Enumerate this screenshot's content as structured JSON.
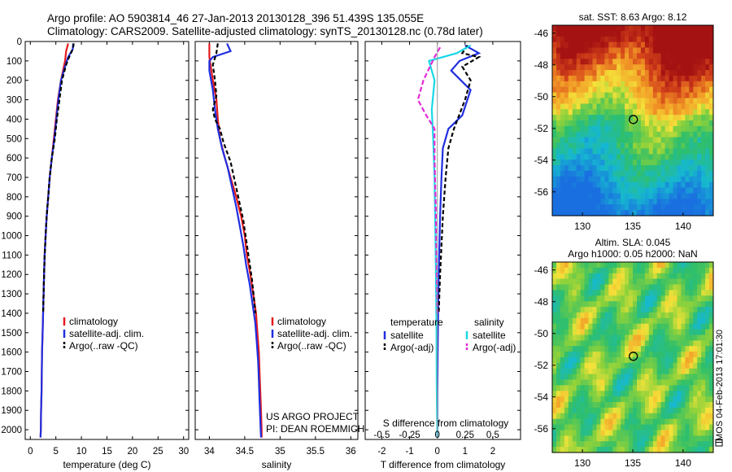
{
  "header": {
    "line1": "Argo profile: AO 5903814_46 27-Jan-2013 20130128_396 51.439S 135.055E",
    "line2": "Climatology: CARS2009. Satellite-adjusted climatology: synTS_20130128.nc (0.78d later)"
  },
  "side_text": "IMOS 04-Feb-2013 17:01:30",
  "credit": {
    "line1": "US ARGO PROJECT",
    "line2": "PI: DEAN ROEMMICH"
  },
  "colors": {
    "climatology": "#e41a1c",
    "satellite": "#1f2ee0",
    "argo": "#000000",
    "satellite_diff_s": "#19d8e8",
    "argo_diff_s": "#e22ad6"
  },
  "chart_data": [
    {
      "type": "line",
      "id": "temperature",
      "xlabel": "temperature (deg C)",
      "ylabel": "",
      "xlim": [
        -1,
        31
      ],
      "ylim": [
        2050,
        0
      ],
      "xticks": [
        0,
        5,
        10,
        15,
        20,
        25,
        30
      ],
      "yticks": [
        0,
        100,
        200,
        300,
        400,
        500,
        600,
        700,
        800,
        900,
        1000,
        1100,
        1200,
        1300,
        1400,
        1500,
        1600,
        1700,
        1800,
        1900,
        2000
      ],
      "legend": [
        "climatology",
        "satellite-adj. clim.",
        "Argo(..raw -QC)"
      ],
      "series": [
        {
          "name": "climatology",
          "color": "#e41a1c",
          "dash": "",
          "points": [
            [
              7.4,
              10
            ],
            [
              7.0,
              50
            ],
            [
              6.8,
              100
            ],
            [
              6.0,
              200
            ],
            [
              5.4,
              300
            ],
            [
              5.0,
              400
            ],
            [
              4.6,
              500
            ],
            [
              4.2,
              600
            ],
            [
              3.8,
              700
            ],
            [
              3.5,
              800
            ],
            [
              3.2,
              900
            ],
            [
              3.0,
              1000
            ],
            [
              2.8,
              1100
            ],
            [
              2.7,
              1200
            ],
            [
              2.6,
              1300
            ],
            [
              2.5,
              1400
            ],
            [
              2.4,
              1500
            ],
            [
              2.3,
              1600
            ],
            [
              2.25,
              1700
            ],
            [
              2.2,
              1800
            ],
            [
              2.1,
              1900
            ],
            [
              2.05,
              2000
            ],
            [
              2.0,
              2040
            ]
          ]
        },
        {
          "name": "satellite-adj. clim.",
          "color": "#1f2ee0",
          "dash": "",
          "points": [
            [
              8.4,
              10
            ],
            [
              8.3,
              40
            ],
            [
              7.4,
              80
            ],
            [
              6.9,
              120
            ],
            [
              6.0,
              200
            ],
            [
              5.5,
              300
            ],
            [
              5.1,
              400
            ],
            [
              4.7,
              500
            ],
            [
              4.2,
              600
            ],
            [
              3.8,
              700
            ],
            [
              3.5,
              800
            ],
            [
              3.2,
              900
            ],
            [
              3.0,
              1000
            ],
            [
              2.8,
              1100
            ],
            [
              2.7,
              1200
            ],
            [
              2.6,
              1300
            ],
            [
              2.5,
              1400
            ],
            [
              2.4,
              1500
            ],
            [
              2.3,
              1600
            ],
            [
              2.25,
              1700
            ],
            [
              2.2,
              1800
            ],
            [
              2.1,
              1900
            ],
            [
              2.05,
              2000
            ],
            [
              2.0,
              2040
            ]
          ]
        },
        {
          "name": "Argo(..raw -QC)",
          "color": "#000000",
          "dash": "5,3",
          "points": [
            [
              8.5,
              10
            ],
            [
              8.3,
              40
            ],
            [
              7.6,
              80
            ],
            [
              7.0,
              120
            ],
            [
              6.2,
              200
            ],
            [
              5.7,
              300
            ],
            [
              5.2,
              400
            ],
            [
              4.8,
              500
            ],
            [
              4.2,
              600
            ],
            [
              3.8,
              700
            ],
            [
              3.5,
              800
            ],
            [
              3.2,
              900
            ],
            [
              3.0,
              1000
            ],
            [
              2.8,
              1100
            ],
            [
              2.7,
              1200
            ],
            [
              2.6,
              1300
            ],
            [
              2.5,
              1400
            ]
          ]
        }
      ]
    },
    {
      "type": "line",
      "id": "salinity",
      "xlabel": "salinity",
      "ylabel": "",
      "xlim": [
        33.8,
        36.1
      ],
      "ylim": [
        2050,
        0
      ],
      "xticks": [
        34,
        34.5,
        35,
        35.5,
        36
      ],
      "yticks": [
        0,
        100,
        200,
        300,
        400,
        500,
        600,
        700,
        800,
        900,
        1000,
        1100,
        1200,
        1300,
        1400,
        1500,
        1600,
        1700,
        1800,
        1900,
        2000
      ],
      "legend": [
        "climatology",
        "satellite-adj. clim.",
        "Argo(..raw -QC)"
      ],
      "series": [
        {
          "name": "climatology",
          "color": "#e41a1c",
          "dash": "",
          "points": [
            [
              34.0,
              10
            ],
            [
              34.0,
              80
            ],
            [
              34.05,
              200
            ],
            [
              34.1,
              300
            ],
            [
              34.12,
              400
            ],
            [
              34.15,
              500
            ],
            [
              34.22,
              600
            ],
            [
              34.3,
              700
            ],
            [
              34.38,
              800
            ],
            [
              34.45,
              900
            ],
            [
              34.5,
              1000
            ],
            [
              34.53,
              1100
            ],
            [
              34.58,
              1200
            ],
            [
              34.62,
              1300
            ],
            [
              34.66,
              1400
            ],
            [
              34.68,
              1500
            ],
            [
              34.7,
              1600
            ],
            [
              34.71,
              1700
            ],
            [
              34.72,
              1800
            ],
            [
              34.73,
              1900
            ],
            [
              34.74,
              2000
            ],
            [
              34.74,
              2040
            ]
          ]
        },
        {
          "name": "satellite-adj. clim.",
          "color": "#1f2ee0",
          "dash": "",
          "points": [
            [
              34.25,
              10
            ],
            [
              34.3,
              50
            ],
            [
              34.05,
              80
            ],
            [
              34.0,
              100
            ],
            [
              34.0,
              150
            ],
            [
              34.05,
              250
            ],
            [
              34.08,
              350
            ],
            [
              34.12,
              450
            ],
            [
              34.18,
              550
            ],
            [
              34.26,
              650
            ],
            [
              34.32,
              750
            ],
            [
              34.38,
              850
            ],
            [
              34.43,
              950
            ],
            [
              34.48,
              1050
            ],
            [
              34.52,
              1150
            ],
            [
              34.57,
              1250
            ],
            [
              34.61,
              1350
            ],
            [
              34.65,
              1450
            ],
            [
              34.67,
              1550
            ],
            [
              34.69,
              1650
            ],
            [
              34.7,
              1750
            ],
            [
              34.71,
              1850
            ],
            [
              34.72,
              1950
            ],
            [
              34.73,
              2040
            ]
          ]
        },
        {
          "name": "Argo(..raw -QC)",
          "color": "#000000",
          "dash": "5,3",
          "points": [
            [
              34.12,
              10
            ],
            [
              34.1,
              60
            ],
            [
              34.05,
              120
            ],
            [
              34.08,
              200
            ],
            [
              34.1,
              280
            ],
            [
              34.05,
              350
            ],
            [
              34.08,
              400
            ],
            [
              34.15,
              450
            ],
            [
              34.2,
              520
            ],
            [
              34.3,
              620
            ],
            [
              34.36,
              720
            ],
            [
              34.42,
              820
            ],
            [
              34.48,
              920
            ],
            [
              34.52,
              1020
            ],
            [
              34.56,
              1120
            ],
            [
              34.6,
              1220
            ],
            [
              34.63,
              1320
            ],
            [
              34.65,
              1400
            ]
          ]
        }
      ]
    },
    {
      "type": "line",
      "id": "difference",
      "xlabel": "T difference from climatology",
      "xlabel2": "S difference from climatology",
      "xlim": [
        -2.6,
        3.0
      ],
      "ylim": [
        2050,
        0
      ],
      "xticks": [
        -2,
        -1,
        0,
        1,
        2
      ],
      "xticks2": [
        {
          "label": "-0.5",
          "value": -2
        },
        {
          "label": "-0.25",
          "value": -1
        },
        {
          "label": "0",
          "value": 0
        },
        {
          "label": "0.25",
          "value": 1
        },
        {
          "label": "0.5",
          "value": 2
        }
      ],
      "yticks": [
        0,
        100,
        200,
        300,
        400,
        500,
        600,
        700,
        800,
        900,
        1000,
        1100,
        1200,
        1300,
        1400,
        1500,
        1600,
        1700,
        1800,
        1900,
        2000
      ],
      "legend_headers": [
        "temperature",
        "salinity"
      ],
      "legend": [
        "satellite",
        "Argo(-adj)",
        "satellite",
        "Argo(-adj)"
      ],
      "series": [
        {
          "name": "T satellite",
          "color": "#1f2ee0",
          "dash": "",
          "points": [
            [
              1.0,
              20
            ],
            [
              1.5,
              60
            ],
            [
              0.8,
              100
            ],
            [
              0.5,
              150
            ],
            [
              1.2,
              250
            ],
            [
              0.9,
              380
            ],
            [
              0.4,
              450
            ],
            [
              0.2,
              550
            ],
            [
              0.15,
              700
            ],
            [
              0.1,
              900
            ],
            [
              0.05,
              1200
            ],
            [
              0.02,
              1500
            ],
            [
              0.0,
              1800
            ],
            [
              0.0,
              2040
            ]
          ]
        },
        {
          "name": "T Argo(-adj)",
          "color": "#000000",
          "dash": "5,3",
          "points": [
            [
              1.1,
              20
            ],
            [
              0.9,
              60
            ],
            [
              1.5,
              80
            ],
            [
              0.9,
              130
            ],
            [
              1.2,
              200
            ],
            [
              1.0,
              300
            ],
            [
              0.6,
              450
            ],
            [
              0.4,
              550
            ],
            [
              0.3,
              700
            ],
            [
              0.2,
              900
            ],
            [
              0.1,
              1200
            ],
            [
              0.05,
              1400
            ]
          ]
        },
        {
          "name": "S satellite",
          "color": "#19d8e8",
          "dash": "",
          "points": [
            [
              1.2,
              20
            ],
            [
              0.7,
              60
            ],
            [
              -0.3,
              100
            ],
            [
              -0.1,
              200
            ],
            [
              -0.2,
              350
            ],
            [
              -0.15,
              500
            ],
            [
              -0.1,
              700
            ],
            [
              -0.08,
              900
            ],
            [
              -0.05,
              1200
            ],
            [
              -0.03,
              1500
            ],
            [
              -0.02,
              1800
            ],
            [
              0.0,
              2040
            ]
          ]
        },
        {
          "name": "S Argo(-adj)",
          "color": "#e22ad6",
          "dash": "6,3",
          "points": [
            [
              0.1,
              30
            ],
            [
              -0.1,
              80
            ],
            [
              -0.5,
              200
            ],
            [
              -0.7,
              300
            ],
            [
              -0.4,
              380
            ],
            [
              -0.1,
              450
            ],
            [
              -0.1,
              600
            ],
            [
              -0.05,
              900
            ],
            [
              -0.02,
              1200
            ],
            [
              0.0,
              1400
            ]
          ]
        }
      ]
    },
    {
      "type": "heatmap",
      "id": "sst_map",
      "title": "sat. SST: 8.63  Argo: 8.12",
      "xlim": [
        127,
        143
      ],
      "ylim": [
        -57.5,
        -45.5
      ],
      "xticks": [
        130,
        135,
        140
      ],
      "yticks": [
        -46,
        -48,
        -50,
        -52,
        -54,
        -56
      ],
      "marker": {
        "lon": 135.055,
        "lat": -51.439
      }
    },
    {
      "type": "heatmap",
      "id": "sla_map",
      "title": "Altim. SLA: 0.045",
      "title2": "Argo h1000: 0.05  h2000: NaN",
      "xlim": [
        127,
        143
      ],
      "ylim": [
        -57.5,
        -45.5
      ],
      "xticks": [
        130,
        135,
        140
      ],
      "yticks": [
        -46,
        -48,
        -50,
        -52,
        -54,
        -56
      ],
      "marker": {
        "lon": 135.055,
        "lat": -51.439
      }
    }
  ]
}
